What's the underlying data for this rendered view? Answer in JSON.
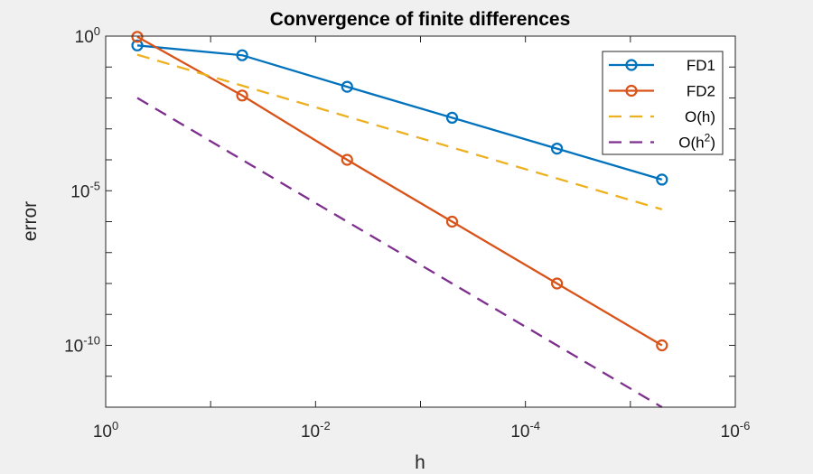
{
  "chart_data": {
    "type": "line",
    "title": "Convergence of finite differences",
    "xlabel": "h",
    "ylabel": "error",
    "xscale": "log",
    "yscale": "log",
    "x_reversed": true,
    "xlim": [
      1,
      1e-06
    ],
    "ylim": [
      1e-12,
      1
    ],
    "x_ticks": [
      {
        "value": 1,
        "base": "10",
        "exp": "0"
      },
      {
        "value": 0.01,
        "base": "10",
        "exp": "-2"
      },
      {
        "value": 0.0001,
        "base": "10",
        "exp": "-4"
      },
      {
        "value": 1e-06,
        "base": "10",
        "exp": "-6"
      }
    ],
    "y_ticks": [
      {
        "value": 1,
        "base": "10",
        "exp": "0"
      },
      {
        "value": 1e-05,
        "base": "10",
        "exp": "-5"
      },
      {
        "value": 1e-10,
        "base": "10",
        "exp": "-10"
      }
    ],
    "grid": false,
    "legend_position": "top-right",
    "series": [
      {
        "name": "FD1",
        "style": "solid",
        "marker": "circle",
        "color": "#0072bd",
        "x": [
          0.5,
          0.05,
          0.005,
          0.0005,
          5e-05,
          5e-06
        ],
        "y": [
          0.5,
          0.24,
          0.023,
          0.0023,
          0.00023,
          2.3e-05
        ]
      },
      {
        "name": "FD2",
        "style": "solid",
        "marker": "circle",
        "color": "#d95319",
        "x": [
          0.5,
          0.05,
          0.005,
          0.0005,
          5e-05,
          5e-06
        ],
        "y": [
          0.95,
          0.012,
          0.0001,
          1e-06,
          1e-08,
          1e-10
        ]
      },
      {
        "name": "O(h)",
        "style": "dashed",
        "marker": "none",
        "color": "#edb120",
        "x": [
          0.5,
          5e-06
        ],
        "y": [
          0.25,
          2.5e-06
        ]
      },
      {
        "name": "O(h2)",
        "legend_base": "O(h",
        "legend_sup": "2",
        "legend_tail": ")",
        "style": "dashed",
        "marker": "none",
        "color": "#7e2f8e",
        "x": [
          0.5,
          5e-06
        ],
        "y": [
          0.01,
          1e-12
        ]
      }
    ]
  }
}
